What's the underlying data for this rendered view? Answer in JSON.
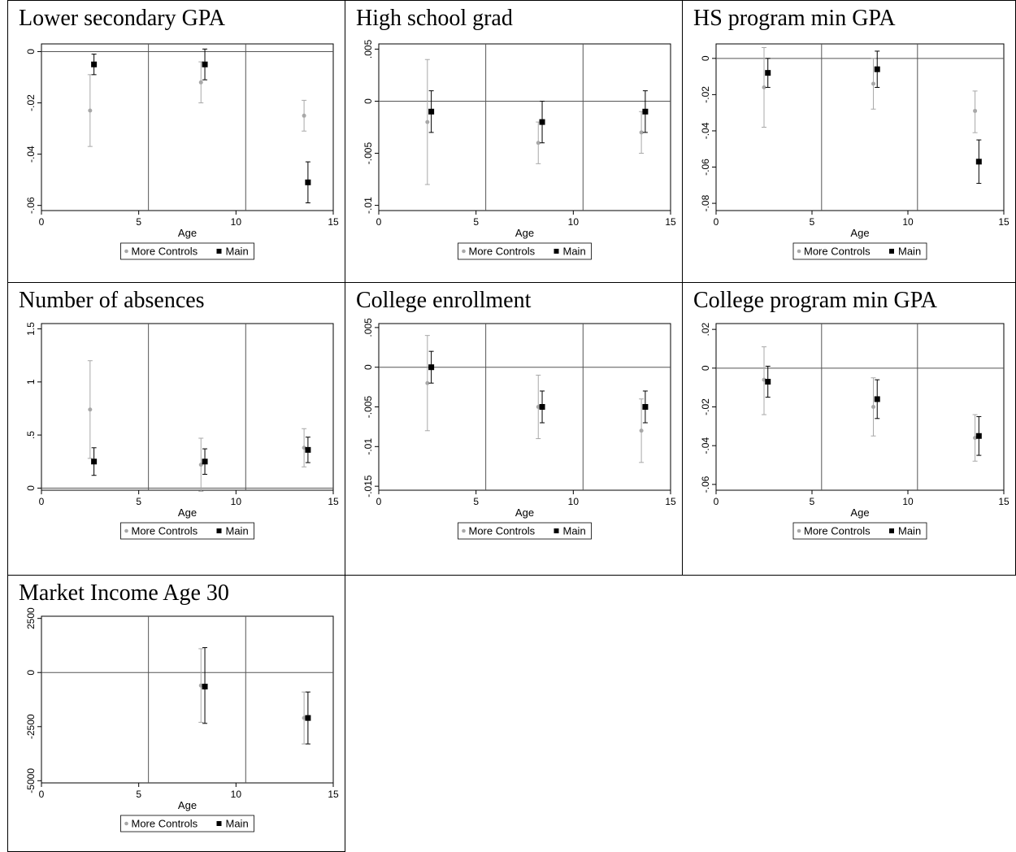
{
  "chart_data": [
    {
      "type": "scatter",
      "title": "Lower secondary GPA",
      "xlabel": "Age",
      "xlim": [
        0,
        15
      ],
      "ylim": [
        -0.062,
        0.003
      ],
      "xticks": [
        0,
        5,
        10,
        15
      ],
      "yticks": [
        0,
        -0.02,
        -0.04,
        -0.06
      ],
      "ytick_labels": [
        "0",
        "-.02",
        "-.04",
        "-.06"
      ],
      "hlines": [
        0
      ],
      "vlines": [
        5.5,
        10.5
      ],
      "series": [
        {
          "name": "More Controls",
          "points": [
            {
              "x": 2.5,
              "y": -0.023,
              "lo": -0.037,
              "hi": -0.009
            },
            {
              "x": 8.2,
              "y": -0.012,
              "lo": -0.02,
              "hi": -0.004
            },
            {
              "x": 13.5,
              "y": -0.025,
              "lo": -0.031,
              "hi": -0.019
            }
          ]
        },
        {
          "name": "Main",
          "points": [
            {
              "x": 2.7,
              "y": -0.005,
              "lo": -0.009,
              "hi": -0.001
            },
            {
              "x": 8.4,
              "y": -0.005,
              "lo": -0.011,
              "hi": 0.001
            },
            {
              "x": 13.7,
              "y": -0.051,
              "lo": -0.059,
              "hi": -0.043
            }
          ]
        }
      ],
      "legend": [
        "More Controls",
        "Main"
      ],
      "legend_position": "bottom"
    },
    {
      "type": "scatter",
      "title": "High school grad",
      "xlabel": "Age",
      "xlim": [
        0,
        15
      ],
      "ylim": [
        -0.0105,
        0.0055
      ],
      "xticks": [
        0,
        5,
        10,
        15
      ],
      "yticks": [
        0.005,
        0,
        -0.005,
        -0.01
      ],
      "ytick_labels": [
        ".005",
        "0",
        "-.005",
        "-.01"
      ],
      "hlines": [
        0
      ],
      "vlines": [
        5.5,
        10.5
      ],
      "series": [
        {
          "name": "More Controls",
          "points": [
            {
              "x": 2.5,
              "y": -0.002,
              "lo": -0.008,
              "hi": 0.004
            },
            {
              "x": 8.2,
              "y": -0.004,
              "lo": -0.006,
              "hi": -0.002
            },
            {
              "x": 13.5,
              "y": -0.003,
              "lo": -0.005,
              "hi": -0.001
            }
          ]
        },
        {
          "name": "Main",
          "points": [
            {
              "x": 2.7,
              "y": -0.001,
              "lo": -0.003,
              "hi": 0.001
            },
            {
              "x": 8.4,
              "y": -0.002,
              "lo": -0.004,
              "hi": 0.0
            },
            {
              "x": 13.7,
              "y": -0.001,
              "lo": -0.003,
              "hi": 0.001
            }
          ]
        }
      ],
      "legend": [
        "More Controls",
        "Main"
      ],
      "legend_position": "bottom"
    },
    {
      "type": "scatter",
      "title": "HS program min GPA",
      "xlabel": "Age",
      "xlim": [
        0,
        15
      ],
      "ylim": [
        -0.084,
        0.008
      ],
      "xticks": [
        0,
        5,
        10,
        15
      ],
      "yticks": [
        0,
        -0.02,
        -0.04,
        -0.06,
        -0.08
      ],
      "ytick_labels": [
        "0",
        "-.02",
        "-.04",
        "-.06",
        "-.08"
      ],
      "hlines": [
        0
      ],
      "vlines": [
        5.5,
        10.5
      ],
      "series": [
        {
          "name": "More Controls",
          "points": [
            {
              "x": 2.5,
              "y": -0.016,
              "lo": -0.038,
              "hi": 0.006
            },
            {
              "x": 8.2,
              "y": -0.014,
              "lo": -0.028,
              "hi": 0.0
            },
            {
              "x": 13.5,
              "y": -0.029,
              "lo": -0.041,
              "hi": -0.018
            }
          ]
        },
        {
          "name": "Main",
          "points": [
            {
              "x": 2.7,
              "y": -0.008,
              "lo": -0.016,
              "hi": 0.0
            },
            {
              "x": 8.4,
              "y": -0.006,
              "lo": -0.016,
              "hi": 0.004
            },
            {
              "x": 13.7,
              "y": -0.057,
              "lo": -0.069,
              "hi": -0.045
            }
          ]
        }
      ],
      "legend": [
        "More Controls",
        "Main"
      ],
      "legend_position": "bottom"
    },
    {
      "type": "scatter",
      "title": "Number of absences",
      "xlabel": "Age",
      "xlim": [
        0,
        15
      ],
      "ylim": [
        -0.02,
        1.55
      ],
      "xticks": [
        0,
        5,
        10,
        15
      ],
      "yticks": [
        0,
        0.5,
        1,
        1.5
      ],
      "ytick_labels": [
        "0",
        ".5",
        "1",
        "1.5"
      ],
      "hlines": [
        0
      ],
      "vlines": [
        5.5,
        10.5
      ],
      "series": [
        {
          "name": "More Controls",
          "points": [
            {
              "x": 2.5,
              "y": 0.74,
              "lo": 0.28,
              "hi": 1.2
            },
            {
              "x": 8.2,
              "y": 0.22,
              "lo": -0.03,
              "hi": 0.47
            },
            {
              "x": 13.5,
              "y": 0.38,
              "lo": 0.2,
              "hi": 0.56
            }
          ]
        },
        {
          "name": "Main",
          "points": [
            {
              "x": 2.7,
              "y": 0.25,
              "lo": 0.12,
              "hi": 0.38
            },
            {
              "x": 8.4,
              "y": 0.25,
              "lo": 0.13,
              "hi": 0.37
            },
            {
              "x": 13.7,
              "y": 0.36,
              "lo": 0.24,
              "hi": 0.48
            }
          ]
        }
      ],
      "legend": [
        "More Controls",
        "Main"
      ],
      "legend_position": "bottom"
    },
    {
      "type": "scatter",
      "title": "College enrollment",
      "xlabel": "Age",
      "xlim": [
        0,
        15
      ],
      "ylim": [
        -0.0155,
        0.0055
      ],
      "xticks": [
        0,
        5,
        10,
        15
      ],
      "yticks": [
        0.005,
        0,
        -0.005,
        -0.01,
        -0.015
      ],
      "ytick_labels": [
        ".005",
        "0",
        "-.005",
        "-.01",
        "-.015"
      ],
      "hlines": [
        0
      ],
      "vlines": [
        5.5,
        10.5
      ],
      "series": [
        {
          "name": "More Controls",
          "points": [
            {
              "x": 2.5,
              "y": -0.002,
              "lo": -0.008,
              "hi": 0.004
            },
            {
              "x": 8.2,
              "y": -0.005,
              "lo": -0.009,
              "hi": -0.001
            },
            {
              "x": 13.5,
              "y": -0.008,
              "lo": -0.012,
              "hi": -0.004
            }
          ]
        },
        {
          "name": "Main",
          "points": [
            {
              "x": 2.7,
              "y": 0.0,
              "lo": -0.002,
              "hi": 0.002
            },
            {
              "x": 8.4,
              "y": -0.005,
              "lo": -0.007,
              "hi": -0.003
            },
            {
              "x": 13.7,
              "y": -0.005,
              "lo": -0.007,
              "hi": -0.003
            }
          ]
        }
      ],
      "legend": [
        "More Controls",
        "Main"
      ],
      "legend_position": "bottom"
    },
    {
      "type": "scatter",
      "title": "College program min GPA",
      "xlabel": "Age",
      "xlim": [
        0,
        15
      ],
      "ylim": [
        -0.063,
        0.023
      ],
      "xticks": [
        0,
        5,
        10,
        15
      ],
      "yticks": [
        0.02,
        0,
        -0.02,
        -0.04,
        -0.06
      ],
      "ytick_labels": [
        ".02",
        "0",
        "-.02",
        "-.04",
        "-.06"
      ],
      "hlines": [
        0
      ],
      "vlines": [
        5.5,
        10.5
      ],
      "series": [
        {
          "name": "More Controls",
          "points": [
            {
              "x": 2.5,
              "y": -0.006,
              "lo": -0.024,
              "hi": 0.011
            },
            {
              "x": 8.2,
              "y": -0.02,
              "lo": -0.035,
              "hi": -0.005
            },
            {
              "x": 13.5,
              "y": -0.036,
              "lo": -0.048,
              "hi": -0.024
            }
          ]
        },
        {
          "name": "Main",
          "points": [
            {
              "x": 2.7,
              "y": -0.007,
              "lo": -0.015,
              "hi": 0.001
            },
            {
              "x": 8.4,
              "y": -0.016,
              "lo": -0.026,
              "hi": -0.006
            },
            {
              "x": 13.7,
              "y": -0.035,
              "lo": -0.045,
              "hi": -0.025
            }
          ]
        }
      ],
      "legend": [
        "More Controls",
        "Main"
      ],
      "legend_position": "bottom"
    },
    {
      "type": "scatter",
      "title": "Market Income Age 30",
      "xlabel": "Age",
      "xlim": [
        0,
        15
      ],
      "ylim": [
        -5100,
        2600
      ],
      "xticks": [
        0,
        5,
        10,
        15
      ],
      "yticks": [
        2500,
        0,
        -2500,
        -5000
      ],
      "ytick_labels": [
        "2500",
        "0",
        "-2500",
        "-5000"
      ],
      "hlines": [
        0
      ],
      "vlines": [
        5.5,
        10.5
      ],
      "series": [
        {
          "name": "More Controls",
          "points": [
            {
              "x": 8.2,
              "y": -600,
              "lo": -2300,
              "hi": 1100
            },
            {
              "x": 13.5,
              "y": -2100,
              "lo": -3300,
              "hi": -900
            }
          ]
        },
        {
          "name": "Main",
          "points": [
            {
              "x": 8.4,
              "y": -650,
              "lo": -2350,
              "hi": 1150
            },
            {
              "x": 13.7,
              "y": -2100,
              "lo": -3300,
              "hi": -900
            }
          ]
        }
      ],
      "legend": [
        "More Controls",
        "Main"
      ],
      "legend_position": "bottom"
    }
  ],
  "colors": {
    "more_controls": "#a8a8a8",
    "main": "#000000",
    "frame": "#000000",
    "refline": "#555555"
  }
}
